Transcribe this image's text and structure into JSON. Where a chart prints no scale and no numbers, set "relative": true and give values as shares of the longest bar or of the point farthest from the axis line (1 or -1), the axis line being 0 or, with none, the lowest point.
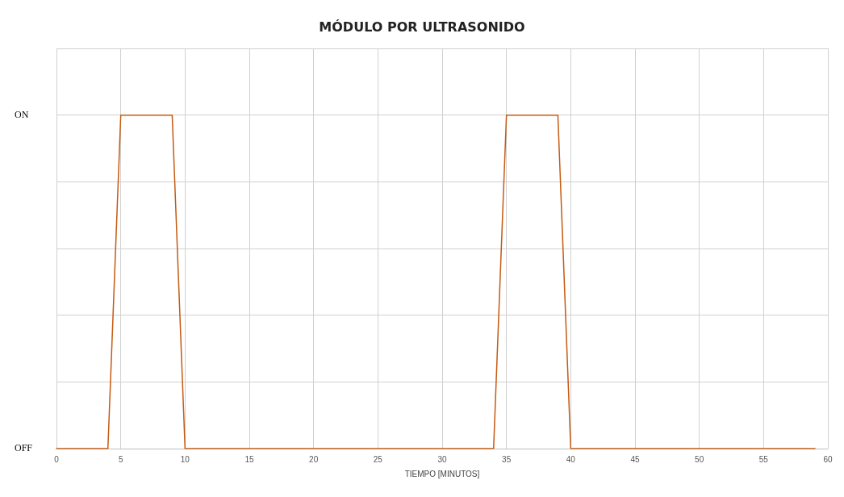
{
  "chart_data": {
    "type": "line",
    "title": "MÓDULO POR ULTRASONIDO",
    "xlabel": "TIEMPO [MINUTOS]",
    "x": [
      0,
      4,
      5,
      9,
      10,
      34,
      35,
      39,
      40,
      59
    ],
    "series": [
      {
        "color": "#c55a11",
        "values": [
          0,
          0,
          1,
          1,
          0,
          0,
          1,
          1,
          0,
          0
        ]
      }
    ],
    "xlim": [
      0,
      60
    ],
    "xticks": [
      0,
      5,
      10,
      15,
      20,
      25,
      30,
      35,
      40,
      45,
      50,
      55,
      60
    ],
    "relative": true,
    "annotations": [
      "ON",
      "OFF"
    ],
    "grid": true,
    "marker": "none",
    "line_style": "solid"
  }
}
